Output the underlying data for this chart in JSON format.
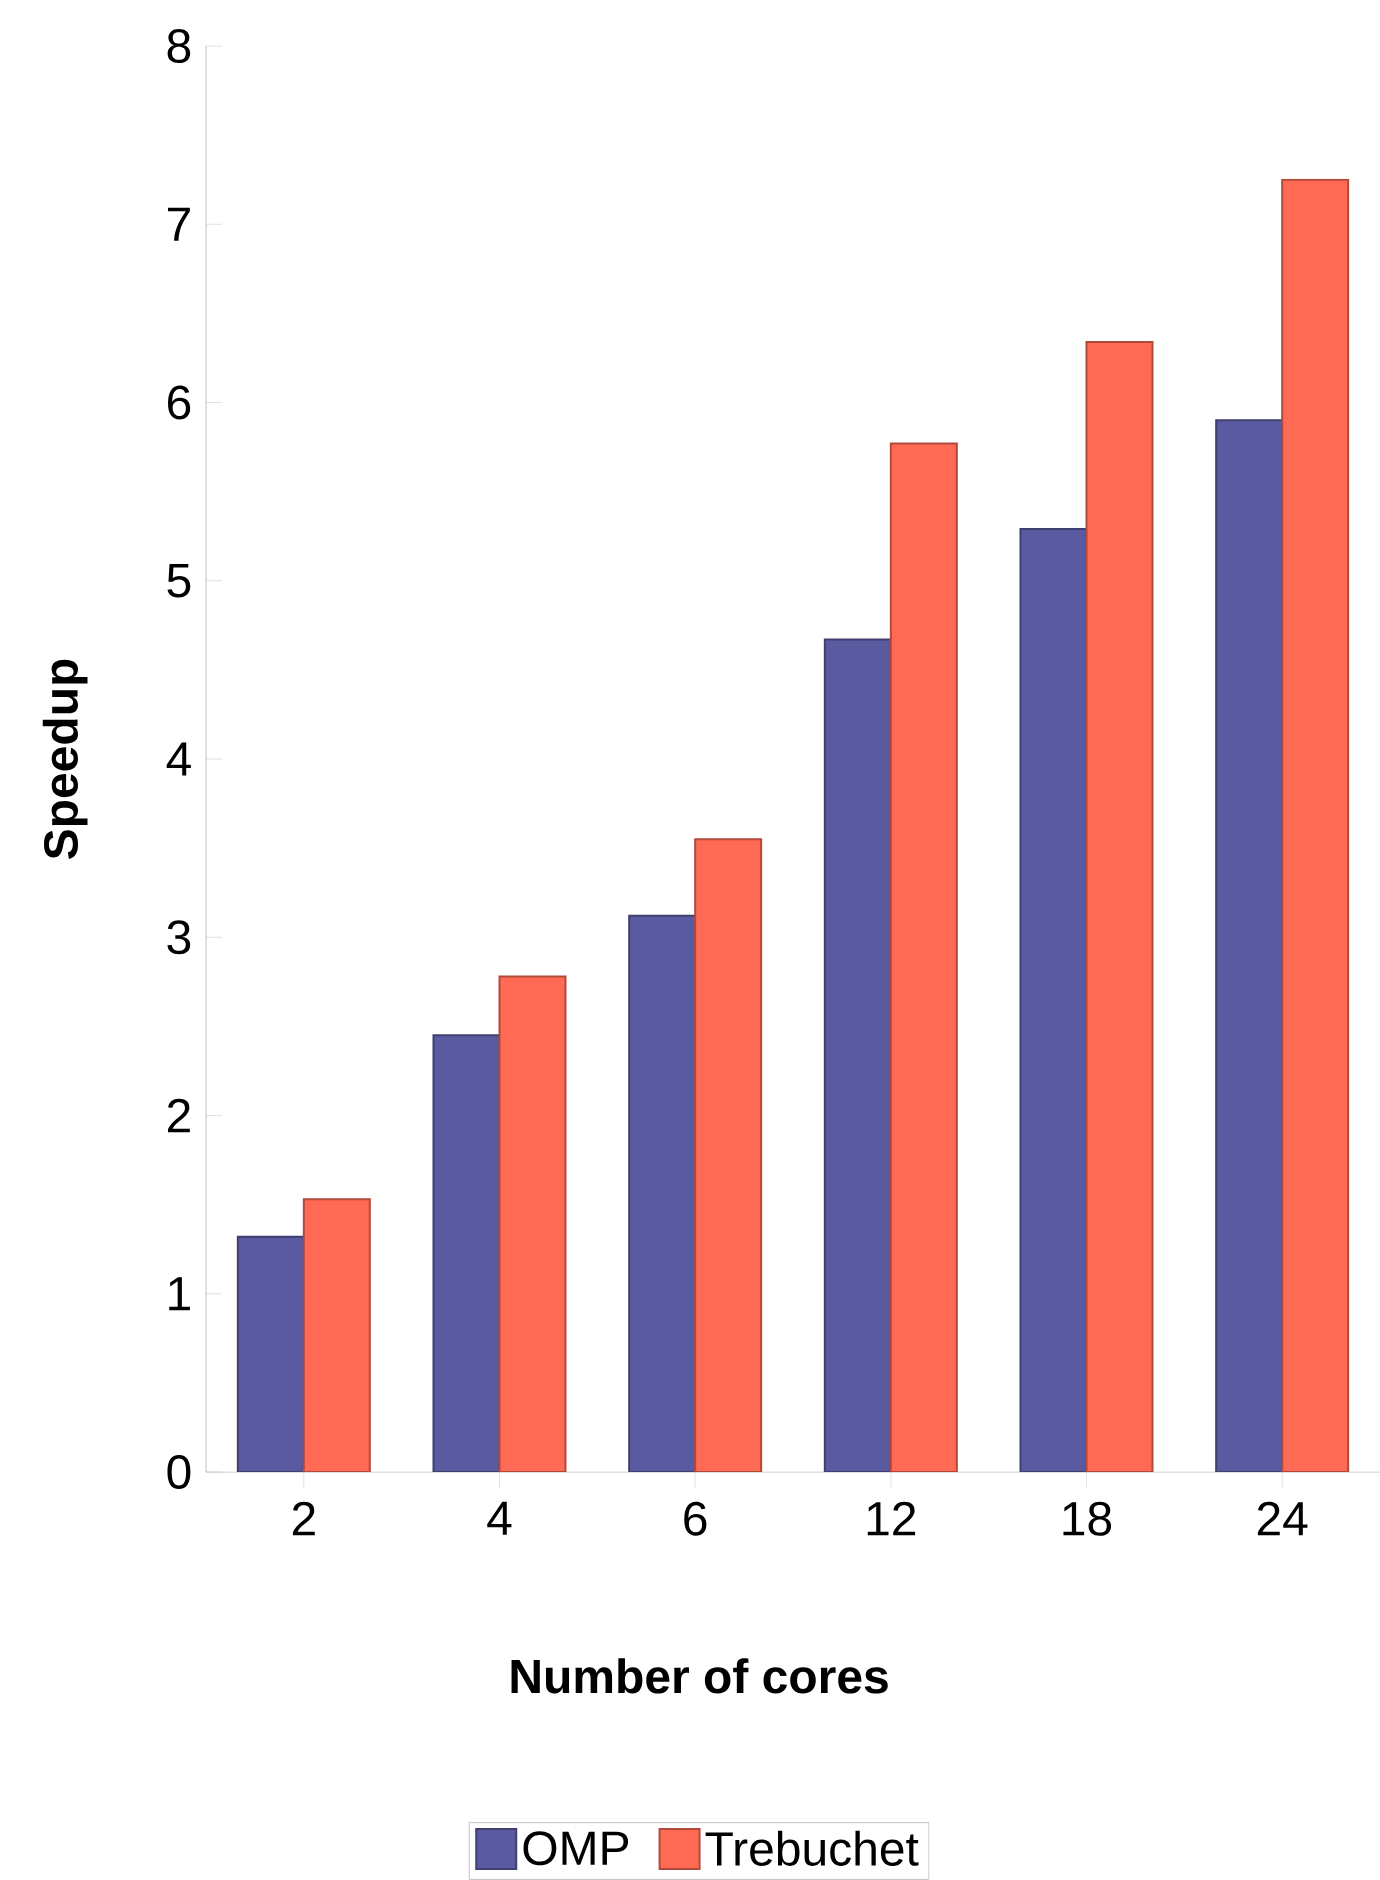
{
  "chart_data": {
    "type": "bar",
    "xlabel": "Number of cores",
    "ylabel": "Speedup",
    "categories": [
      "2",
      "4",
      "6",
      "12",
      "18",
      "24"
    ],
    "series": [
      {
        "name": "OMP",
        "color": "#5a5aa0",
        "values": [
          1.32,
          2.45,
          3.12,
          4.67,
          5.29,
          5.9
        ]
      },
      {
        "name": "Trebuchet",
        "color": "#ff6a55",
        "values": [
          1.53,
          2.78,
          3.55,
          5.77,
          6.34,
          7.25
        ]
      }
    ],
    "ylim": [
      0,
      8
    ],
    "yticks": [
      0,
      1,
      2,
      3,
      4,
      5,
      6,
      7,
      8
    ],
    "grid": false,
    "legend": "bottom"
  }
}
